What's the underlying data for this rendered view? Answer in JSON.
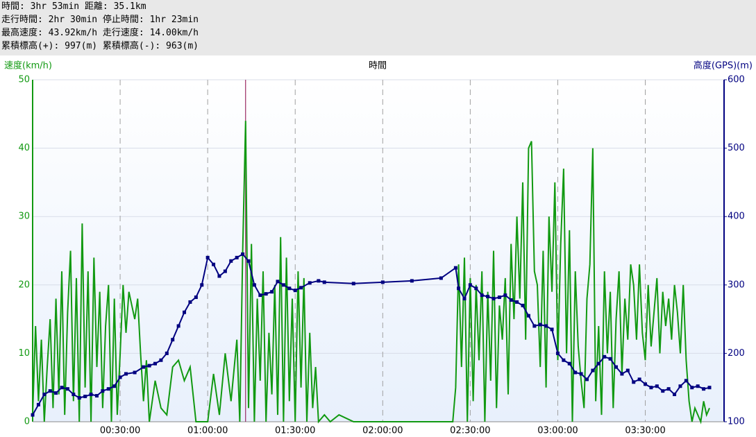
{
  "header": {
    "lines": [
      "時間: 3hr 53min 距離: 35.1km",
      "走行時間: 2hr 30min 停止時間: 1hr 23min",
      "最高速度: 43.92km/h 走行速度: 14.00km/h",
      "累積標高(+): 997(m) 累積標高(-): 963(m)"
    ]
  },
  "chart_data": {
    "type": "line",
    "ylabel": "速度(km/h)",
    "xlabel": "時間",
    "y2label": "高度(GPS)(m)",
    "xlim": [
      0,
      237
    ],
    "ylim": [
      0,
      50
    ],
    "y2lim": [
      100,
      600
    ],
    "xticks": [
      {
        "value": 30,
        "label": "00:30:00"
      },
      {
        "value": 60,
        "label": "01:00:00"
      },
      {
        "value": 90,
        "label": "01:30:00"
      },
      {
        "value": 120,
        "label": "02:00:00"
      },
      {
        "value": 150,
        "label": "02:30:00"
      },
      {
        "value": 180,
        "label": "03:00:00"
      },
      {
        "value": 210,
        "label": "03:30:00"
      }
    ],
    "yticks": [
      0,
      10,
      20,
      30,
      40,
      50
    ],
    "y2ticks": [
      100,
      200,
      300,
      400,
      500,
      600
    ],
    "grid": true,
    "cursor": 73,
    "series": [
      {
        "name": "速度",
        "color": "#119911",
        "x": [
          0,
          1,
          2,
          3,
          4,
          5,
          6,
          7,
          8,
          9,
          10,
          11,
          12,
          13,
          14,
          15,
          16,
          17,
          18,
          19,
          20,
          21,
          22,
          23,
          24,
          25,
          26,
          27,
          28,
          29,
          30,
          31,
          32,
          33,
          34,
          35,
          36,
          37,
          38,
          39,
          40,
          42,
          44,
          46,
          48,
          50,
          52,
          54,
          56,
          58,
          60,
          62,
          64,
          66,
          68,
          70,
          71,
          72,
          73,
          74,
          75,
          76,
          77,
          78,
          79,
          80,
          81,
          82,
          83,
          84,
          85,
          86,
          87,
          88,
          89,
          90,
          91,
          92,
          93,
          94,
          95,
          96,
          97,
          98,
          100,
          102,
          105,
          110,
          120,
          135,
          140,
          144,
          145,
          146,
          147,
          148,
          149,
          150,
          151,
          152,
          153,
          154,
          155,
          156,
          157,
          158,
          159,
          160,
          161,
          162,
          163,
          164,
          165,
          166,
          167,
          168,
          169,
          170,
          171,
          172,
          173,
          174,
          175,
          176,
          177,
          178,
          179,
          180,
          181,
          182,
          183,
          184,
          185,
          186,
          187,
          188,
          189,
          190,
          191,
          192,
          193,
          194,
          195,
          196,
          197,
          198,
          199,
          200,
          201,
          202,
          203,
          204,
          205,
          206,
          207,
          208,
          209,
          210,
          211,
          212,
          213,
          214,
          215,
          216,
          217,
          218,
          219,
          220,
          221,
          222,
          223,
          224,
          225,
          226,
          227,
          228,
          229,
          230,
          231,
          232
        ],
        "values": [
          1,
          14,
          3,
          12,
          0,
          8,
          15,
          2,
          18,
          4,
          22,
          1,
          16,
          25,
          3,
          21,
          0,
          29,
          5,
          22,
          0,
          24,
          8,
          19,
          2,
          14,
          20,
          0,
          18,
          1,
          10,
          20,
          13,
          19,
          17,
          15,
          18,
          10,
          3,
          9,
          0,
          6,
          2,
          1,
          8,
          9,
          6,
          8,
          0,
          0,
          0,
          7,
          1,
          10,
          3,
          12,
          0,
          25,
          44,
          2,
          26,
          0,
          18,
          6,
          22,
          0,
          13,
          4,
          20,
          1,
          27,
          0,
          24,
          3,
          18,
          0,
          22,
          5,
          21,
          0,
          13,
          2,
          8,
          0,
          1,
          0,
          1,
          0,
          0,
          0,
          0,
          0,
          5,
          23,
          8,
          24,
          0,
          21,
          3,
          20,
          9,
          22,
          0,
          19,
          6,
          25,
          2,
          17,
          12,
          21,
          4,
          26,
          15,
          30,
          18,
          35,
          12,
          40,
          41,
          22,
          20,
          8,
          25,
          5,
          30,
          19,
          35,
          9,
          26,
          37,
          10,
          28,
          0,
          22,
          11,
          6,
          2,
          18,
          23,
          40,
          3,
          14,
          1,
          22,
          10,
          19,
          2,
          15,
          22,
          7,
          18,
          12,
          23,
          20,
          12,
          23,
          13,
          9,
          20,
          11,
          16,
          21,
          10,
          19,
          14,
          18,
          12,
          20,
          16,
          10,
          20,
          9,
          3,
          0,
          2,
          1,
          0,
          3,
          1,
          2
        ]
      },
      {
        "name": "高度",
        "color": "#000080",
        "axis": "y2",
        "x": [
          0,
          2,
          4,
          6,
          8,
          10,
          12,
          14,
          16,
          18,
          20,
          22,
          24,
          26,
          28,
          30,
          32,
          35,
          38,
          40,
          42,
          44,
          46,
          48,
          50,
          52,
          54,
          56,
          58,
          60,
          62,
          64,
          66,
          68,
          70,
          72,
          74,
          76,
          78,
          80,
          82,
          84,
          86,
          88,
          90,
          92,
          95,
          98,
          100,
          110,
          120,
          130,
          140,
          145,
          146,
          148,
          150,
          152,
          154,
          156,
          158,
          160,
          162,
          164,
          166,
          168,
          170,
          172,
          174,
          176,
          178,
          180,
          182,
          184,
          186,
          188,
          190,
          192,
          194,
          196,
          198,
          200,
          202,
          204,
          206,
          208,
          210,
          212,
          214,
          216,
          218,
          220,
          222,
          224,
          226,
          228,
          230,
          232
        ],
        "values": [
          110,
          125,
          140,
          145,
          142,
          150,
          148,
          140,
          135,
          137,
          140,
          138,
          145,
          148,
          152,
          165,
          170,
          172,
          180,
          182,
          185,
          190,
          200,
          220,
          240,
          260,
          275,
          282,
          300,
          340,
          330,
          313,
          320,
          335,
          340,
          345,
          335,
          300,
          285,
          287,
          290,
          305,
          300,
          295,
          292,
          296,
          303,
          306,
          304,
          302,
          304,
          306,
          310,
          325,
          295,
          280,
          300,
          295,
          285,
          283,
          280,
          282,
          285,
          278,
          275,
          270,
          255,
          240,
          242,
          240,
          235,
          200,
          190,
          185,
          172,
          170,
          162,
          175,
          185,
          195,
          192,
          180,
          170,
          175,
          158,
          162,
          155,
          150,
          152,
          145,
          148,
          140,
          152,
          160,
          150,
          152,
          148,
          150
        ]
      }
    ]
  }
}
